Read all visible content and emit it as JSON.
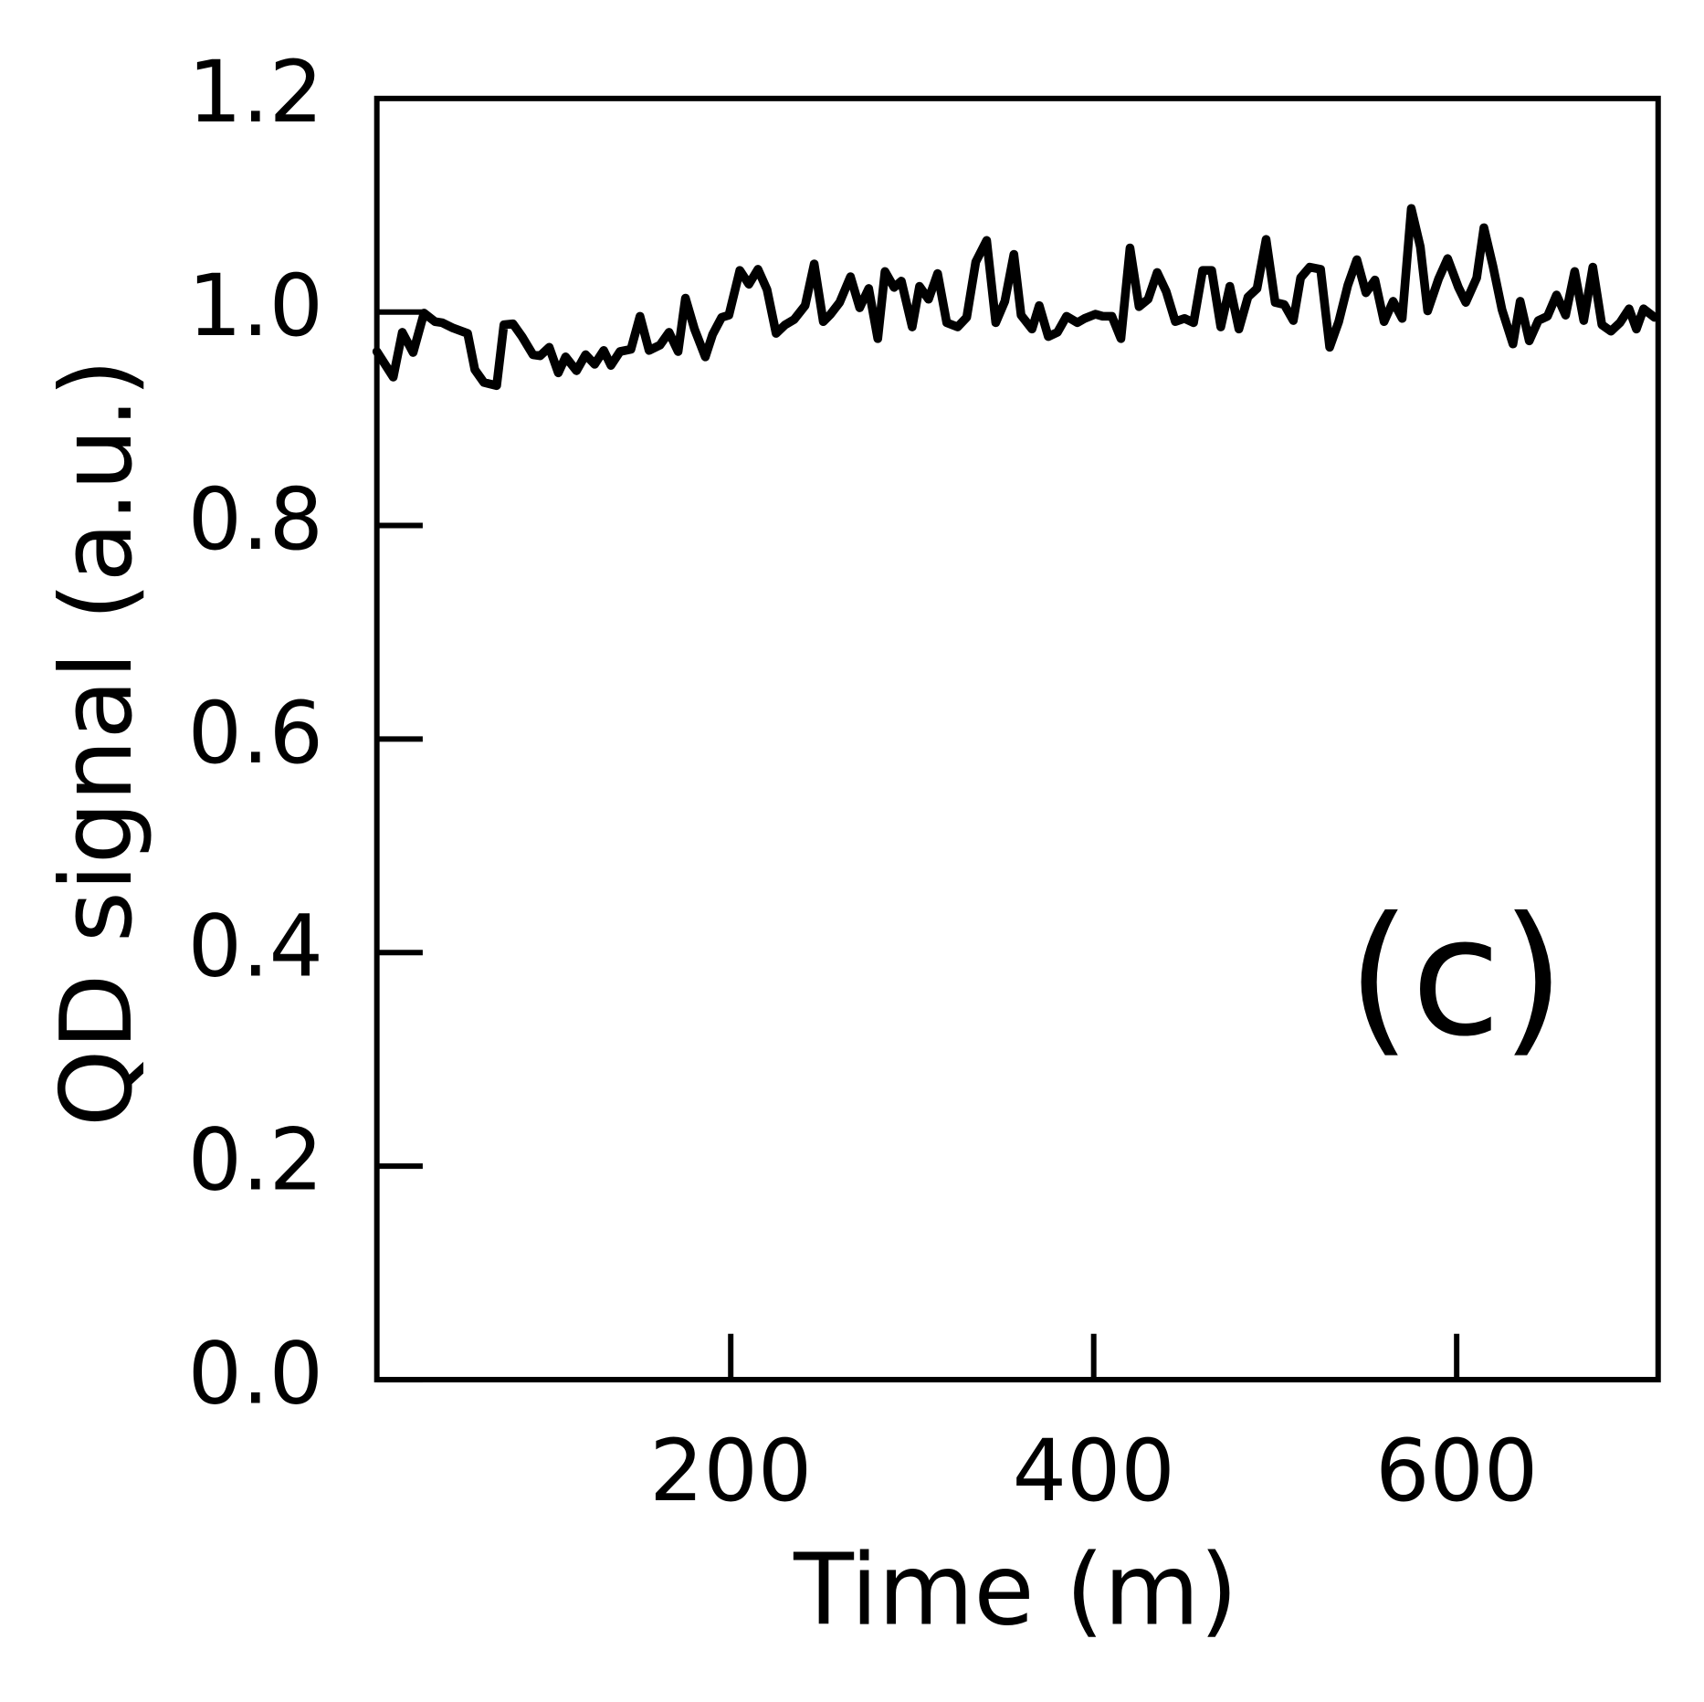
{
  "chart_data": {
    "type": "line",
    "xlabel": "Time (m)",
    "ylabel": "QD signal (a.u.)",
    "annotation": "(c)",
    "color": "#000000",
    "xlim": [
      5,
      711
    ],
    "ylim": [
      0,
      1.2
    ],
    "xticks": [
      200,
      400,
      600
    ],
    "yticks": [
      {
        "value": 0,
        "label": "0.0"
      },
      0.2,
      0.4,
      0.6,
      0.8,
      {
        "value": 1,
        "label": "1.0"
      },
      1.2
    ],
    "x": [
      5,
      14,
      19,
      25,
      31,
      37,
      41,
      47,
      55,
      59,
      64,
      71,
      75,
      80,
      85,
      91,
      95,
      100,
      105,
      109,
      115,
      120,
      125,
      130,
      134,
      139,
      145,
      150,
      155,
      161,
      166,
      171,
      175,
      180,
      186,
      190,
      195,
      199,
      205,
      210,
      215,
      220,
      225,
      230,
      235,
      241,
      246,
      251,
      255,
      260,
      266,
      271,
      276,
      281,
      285,
      290,
      294,
      300,
      304,
      309,
      314,
      319,
      325,
      330,
      335,
      341,
      346,
      351,
      356,
      360,
      366,
      370,
      375,
      380,
      385,
      391,
      395,
      401,
      405,
      410,
      415,
      420,
      425,
      430,
      435,
      440,
      445,
      450,
      455,
      460,
      465,
      470,
      475,
      480,
      485,
      490,
      495,
      500,
      505,
      510,
      514,
      519,
      525,
      530,
      535,
      540,
      545,
      550,
      555,
      560,
      565,
      570,
      575,
      580,
      584,
      590,
      595,
      601,
      605,
      611,
      615,
      620,
      625,
      631,
      635,
      640,
      645,
      650,
      655,
      660,
      665,
      670,
      675,
      680,
      685,
      690,
      695,
      699,
      703,
      709
    ],
    "values": [
      0.963,
      0.939,
      0.981,
      0.962,
      0.999,
      0.991,
      0.99,
      0.985,
      0.98,
      0.946,
      0.934,
      0.931,
      0.988,
      0.989,
      0.977,
      0.96,
      0.959,
      0.967,
      0.943,
      0.958,
      0.945,
      0.96,
      0.951,
      0.964,
      0.95,
      0.963,
      0.965,
      0.996,
      0.964,
      0.969,
      0.981,
      0.963,
      1.013,
      0.984,
      0.958,
      0.979,
      0.995,
      0.997,
      1.039,
      1.026,
      1.04,
      1.021,
      0.98,
      0.988,
      0.993,
      1.006,
      1.045,
      0.991,
      0.998,
      1.009,
      1.033,
      1.004,
      1.022,
      0.975,
      1.038,
      1.023,
      1.029,
      0.986,
      1.024,
      1.012,
      1.036,
      0.99,
      0.986,
      0.995,
      1.047,
      1.067,
      0.99,
      1.01,
      1.054,
      0.997,
      0.984,
      1.006,
      0.977,
      0.981,
      0.996,
      0.99,
      0.994,
      0.998,
      0.996,
      0.996,
      0.975,
      1.06,
      1.005,
      1.012,
      1.037,
      1.019,
      0.991,
      0.994,
      0.99,
      1.039,
      1.039,
      0.986,
      1.024,
      0.984,
      1.014,
      1.022,
      1.068,
      1.009,
      1.007,
      0.992,
      1.032,
      1.042,
      1.04,
      0.967,
      0.991,
      1.025,
      1.049,
      1.018,
      1.03,
      0.991,
      1.01,
      0.994,
      1.097,
      1.061,
      1.001,
      1.031,
      1.05,
      1.023,
      1.009,
      1.032,
      1.079,
      1.043,
      1.002,
      0.97,
      1.01,
      0.973,
      0.992,
      0.996,
      1.016,
      0.997,
      1.038,
      0.992,
      1.042,
      0.988,
      0.982,
      0.99,
      1.003,
      0.984,
      1.003,
      0.995
    ]
  }
}
